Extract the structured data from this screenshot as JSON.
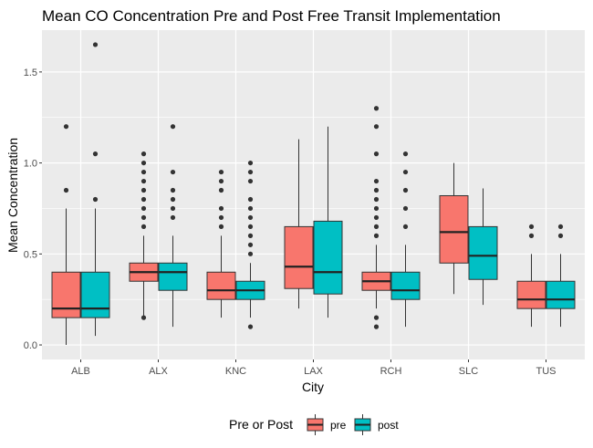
{
  "chart_data": {
    "type": "boxplot",
    "title": "Mean CO Concentration Pre and Post Free Transit Implementation",
    "xlabel": "City",
    "ylabel": "Mean Concentration",
    "ylim": [
      -0.08,
      1.73
    ],
    "yticks": [
      0.0,
      0.5,
      1.0,
      1.5
    ],
    "ytick_labels": [
      "0.0",
      "0.5",
      "1.0",
      "1.5"
    ],
    "grid": true,
    "legend": {
      "title": "Pre or Post",
      "position": "bottom"
    },
    "categories": [
      "ALB",
      "ALX",
      "KNC",
      "LAX",
      "RCH",
      "SLC",
      "TUS"
    ],
    "series": [
      {
        "name": "pre",
        "color": "#F8766D",
        "boxes": [
          {
            "min": 0.0,
            "q1": 0.15,
            "median": 0.2,
            "q3": 0.4,
            "max": 0.75,
            "outliers": [
              0.85,
              1.2
            ]
          },
          {
            "min": 0.15,
            "q1": 0.35,
            "median": 0.4,
            "q3": 0.45,
            "max": 0.6,
            "outliers": [
              0.65,
              0.7,
              0.75,
              0.8,
              0.85,
              0.9,
              0.95,
              1.0,
              1.05,
              0.15
            ]
          },
          {
            "min": 0.15,
            "q1": 0.25,
            "median": 0.3,
            "q3": 0.4,
            "max": 0.6,
            "outliers": [
              0.65,
              0.7,
              0.75,
              0.85,
              0.9,
              0.95
            ]
          },
          {
            "min": 0.2,
            "q1": 0.31,
            "median": 0.43,
            "q3": 0.65,
            "max": 1.13,
            "outliers": []
          },
          {
            "min": 0.2,
            "q1": 0.3,
            "median": 0.35,
            "q3": 0.4,
            "max": 0.55,
            "outliers": [
              0.6,
              0.65,
              0.7,
              0.75,
              0.8,
              0.85,
              0.9,
              1.05,
              1.2,
              1.3,
              0.1,
              0.15
            ]
          },
          {
            "min": 0.28,
            "q1": 0.45,
            "median": 0.62,
            "q3": 0.82,
            "max": 1.0,
            "outliers": []
          },
          {
            "min": 0.1,
            "q1": 0.2,
            "median": 0.25,
            "q3": 0.35,
            "max": 0.5,
            "outliers": [
              0.6,
              0.65
            ]
          }
        ]
      },
      {
        "name": "post",
        "color": "#00BFC4",
        "boxes": [
          {
            "min": 0.05,
            "q1": 0.15,
            "median": 0.2,
            "q3": 0.4,
            "max": 0.75,
            "outliers": [
              0.8,
              1.05,
              1.65
            ]
          },
          {
            "min": 0.1,
            "q1": 0.3,
            "median": 0.4,
            "q3": 0.45,
            "max": 0.6,
            "outliers": [
              0.7,
              0.75,
              0.8,
              0.85,
              0.95,
              1.2
            ]
          },
          {
            "min": 0.15,
            "q1": 0.25,
            "median": 0.3,
            "q3": 0.35,
            "max": 0.45,
            "outliers": [
              0.5,
              0.55,
              0.6,
              0.65,
              0.7,
              0.75,
              0.8,
              0.9,
              0.95,
              1.0,
              0.1
            ]
          },
          {
            "min": 0.15,
            "q1": 0.28,
            "median": 0.4,
            "q3": 0.68,
            "max": 1.2,
            "outliers": []
          },
          {
            "min": 0.1,
            "q1": 0.25,
            "median": 0.3,
            "q3": 0.4,
            "max": 0.55,
            "outliers": [
              0.65,
              0.75,
              0.85,
              0.95,
              1.05
            ]
          },
          {
            "min": 0.22,
            "q1": 0.36,
            "median": 0.49,
            "q3": 0.65,
            "max": 0.86,
            "outliers": []
          },
          {
            "min": 0.1,
            "q1": 0.2,
            "median": 0.25,
            "q3": 0.35,
            "max": 0.5,
            "outliers": [
              0.6,
              0.65
            ]
          }
        ]
      }
    ]
  }
}
